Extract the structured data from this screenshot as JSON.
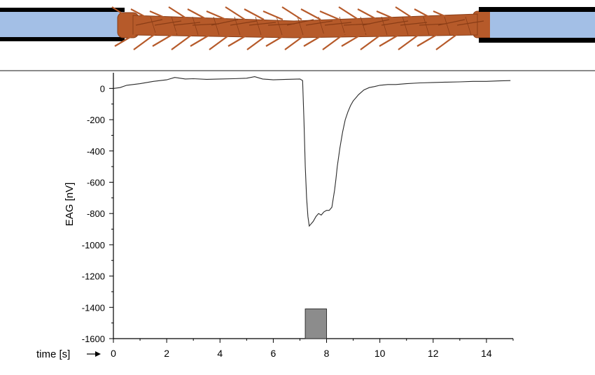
{
  "colors": {
    "capillary_fill": "#a3bfe6",
    "capillary_wall": "#000000",
    "antenna_fill": "#b65a2a",
    "antenna_dark": "#8a3d16",
    "trace": "#2a2a2a",
    "stimulus_fill": "#8c8c8c"
  },
  "illustration": {
    "left_capillary_icon": "glass-capillary-icon",
    "antenna_icon": "insect-antenna-icon",
    "right_capillary_icon": "glass-capillary-icon"
  },
  "chart_data": {
    "type": "line",
    "title": "",
    "xlabel": "time [s]",
    "ylabel": "EAG [nV]",
    "xlim": [
      0,
      15
    ],
    "ylim": [
      -1600,
      100
    ],
    "x_ticks": [
      0,
      2,
      4,
      6,
      8,
      10,
      12,
      14
    ],
    "y_ticks": [
      0,
      -200,
      -400,
      -600,
      -800,
      -1000,
      -1200,
      -1400,
      -1600
    ],
    "grid": false,
    "legend": "none",
    "series": [
      {
        "name": "",
        "x": [
          0,
          0.25,
          0.5,
          1.0,
          1.5,
          2.0,
          2.3,
          2.7,
          3.0,
          3.5,
          4.0,
          4.5,
          5.0,
          5.3,
          5.6,
          6.0,
          6.5,
          7.0,
          7.1,
          7.15,
          7.2,
          7.25,
          7.3,
          7.35,
          7.4,
          7.45,
          7.5,
          7.6,
          7.7,
          7.8,
          7.9,
          8.0,
          8.1,
          8.2,
          8.3,
          8.35,
          8.4,
          8.5,
          8.6,
          8.7,
          8.8,
          8.9,
          9.0,
          9.2,
          9.4,
          9.6,
          9.8,
          10.0,
          10.3,
          10.6,
          11.0,
          11.5,
          12.0,
          12.5,
          13.0,
          13.5,
          14.0,
          14.5,
          14.9
        ],
        "y": [
          0,
          5,
          20,
          30,
          45,
          55,
          70,
          60,
          62,
          58,
          60,
          62,
          65,
          75,
          60,
          55,
          58,
          60,
          50,
          -200,
          -500,
          -700,
          -820,
          -880,
          -870,
          -860,
          -850,
          -820,
          -800,
          -810,
          -790,
          -780,
          -780,
          -760,
          -650,
          -580,
          -500,
          -380,
          -280,
          -200,
          -150,
          -110,
          -80,
          -40,
          -10,
          5,
          12,
          20,
          25,
          25,
          30,
          35,
          38,
          40,
          42,
          45,
          45,
          48,
          50
        ]
      }
    ],
    "stimulus": {
      "start": 7.2,
      "end": 8.0,
      "bottom": -1600,
      "top": -1410
    }
  }
}
